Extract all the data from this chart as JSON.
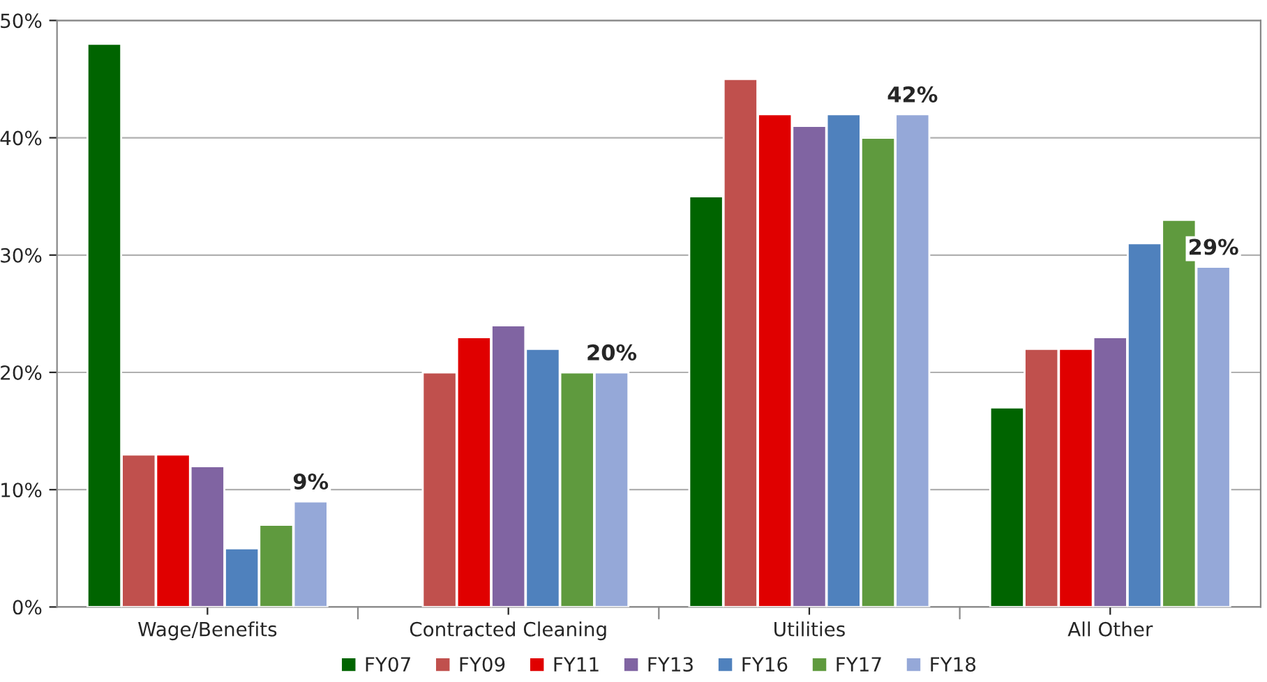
{
  "chart_data": {
    "type": "bar",
    "categories": [
      "Wage/Benefits",
      "Contracted Cleaning",
      "Utilities",
      "All Other"
    ],
    "series": [
      {
        "name": "FY07",
        "color": "#006400",
        "values": [
          48,
          null,
          35,
          17
        ]
      },
      {
        "name": "FY09",
        "color": "#c0504d",
        "values": [
          13,
          20,
          45,
          22
        ]
      },
      {
        "name": "FY11",
        "color": "#e00000",
        "values": [
          13,
          23,
          42,
          22
        ]
      },
      {
        "name": "FY13",
        "color": "#8064a2",
        "values": [
          12,
          24,
          41,
          23
        ]
      },
      {
        "name": "FY16",
        "color": "#4f81bd",
        "values": [
          5,
          22,
          42,
          31
        ]
      },
      {
        "name": "FY17",
        "color": "#5f9a3e",
        "values": [
          7,
          20,
          40,
          33
        ]
      },
      {
        "name": "FY18",
        "color": "#95a8d8",
        "values": [
          9,
          20,
          42,
          29
        ],
        "value_labels": [
          "9%",
          "20%",
          "42%",
          "29%"
        ]
      }
    ],
    "ylim": [
      0,
      50
    ],
    "yticks": [
      {
        "value": 0,
        "label": "0%"
      },
      {
        "value": 10,
        "label": "10%"
      },
      {
        "value": 20,
        "label": "20%"
      },
      {
        "value": 30,
        "label": "30%"
      },
      {
        "value": 40,
        "label": "40%"
      },
      {
        "value": 50,
        "label": "50%"
      }
    ],
    "grid": "y",
    "legend": "bottom"
  }
}
